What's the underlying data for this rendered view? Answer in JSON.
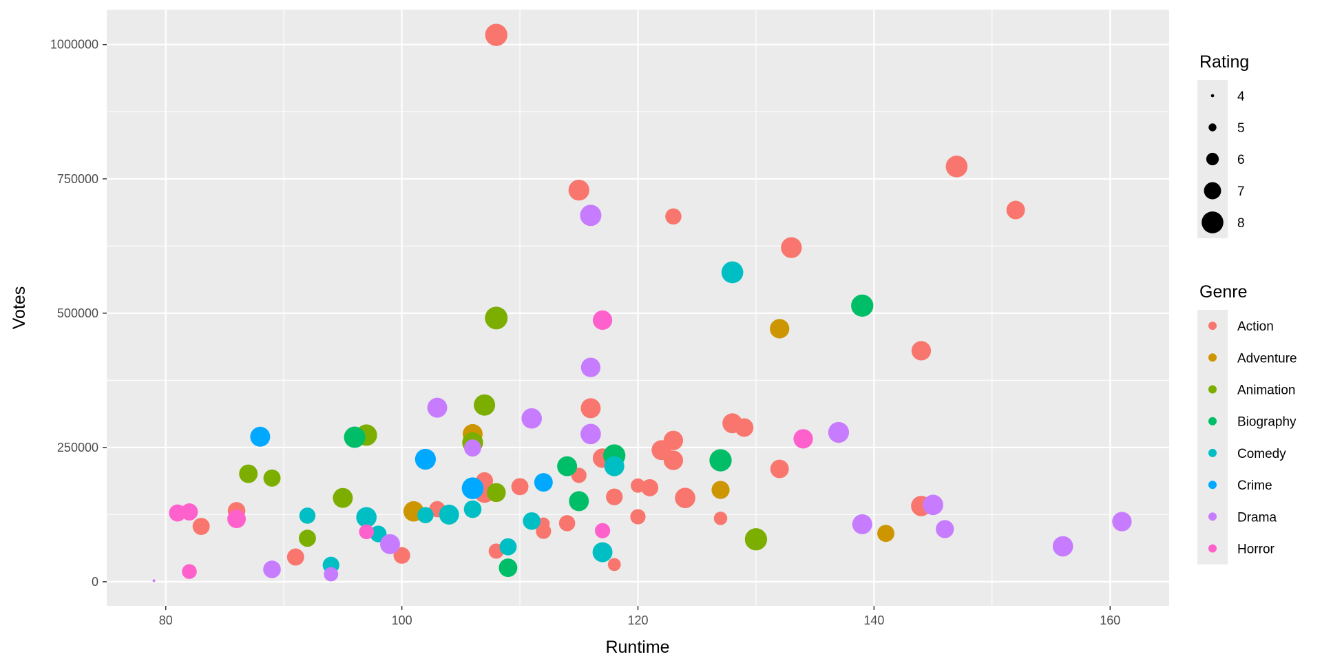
{
  "chart_data": {
    "type": "scatter",
    "title": "",
    "xlabel": "Runtime",
    "ylabel": "Votes",
    "xlim": [
      75,
      165
    ],
    "ylim": [
      -45000,
      1065000
    ],
    "xticks": [
      80,
      100,
      120,
      140,
      160
    ],
    "yticks": [
      0,
      250000,
      500000,
      750000,
      1000000
    ],
    "grid": true,
    "legend_position": "right",
    "size_legend": {
      "title": "Rating",
      "entries": [
        {
          "label": "4",
          "value": 4
        },
        {
          "label": "5",
          "value": 5
        },
        {
          "label": "6",
          "value": 6
        },
        {
          "label": "7",
          "value": 7
        },
        {
          "label": "8",
          "value": 8
        }
      ]
    },
    "color_legend": {
      "title": "Genre",
      "entries": [
        {
          "label": "Action",
          "color": "#F8766D"
        },
        {
          "label": "Adventure",
          "color": "#CD9600"
        },
        {
          "label": "Animation",
          "color": "#7CAE00"
        },
        {
          "label": "Biography",
          "color": "#00BE67"
        },
        {
          "label": "Comedy",
          "color": "#00BFC4"
        },
        {
          "label": "Crime",
          "color": "#00A9FF"
        },
        {
          "label": "Drama",
          "color": "#C77CFF"
        },
        {
          "label": "Horror",
          "color": "#FF61CC"
        }
      ]
    },
    "points": [
      {
        "x": 108,
        "y": 1018000,
        "rating": 8.1,
        "genre": "Action"
      },
      {
        "x": 147,
        "y": 773000,
        "rating": 8.0,
        "genre": "Action"
      },
      {
        "x": 115,
        "y": 729000,
        "rating": 7.8,
        "genre": "Action"
      },
      {
        "x": 152,
        "y": 692000,
        "rating": 7.3,
        "genre": "Action"
      },
      {
        "x": 123,
        "y": 680000,
        "rating": 6.8,
        "genre": "Action"
      },
      {
        "x": 133,
        "y": 622000,
        "rating": 7.8,
        "genre": "Action"
      },
      {
        "x": 144,
        "y": 430000,
        "rating": 7.5,
        "genre": "Action"
      },
      {
        "x": 116,
        "y": 323000,
        "rating": 7.6,
        "genre": "Action"
      },
      {
        "x": 128,
        "y": 295000,
        "rating": 7.6,
        "genre": "Action"
      },
      {
        "x": 129,
        "y": 287000,
        "rating": 7.3,
        "genre": "Action"
      },
      {
        "x": 123,
        "y": 263000,
        "rating": 7.5,
        "genre": "Action"
      },
      {
        "x": 122,
        "y": 245000,
        "rating": 7.6,
        "genre": "Action"
      },
      {
        "x": 117,
        "y": 230000,
        "rating": 7.5,
        "genre": "Action"
      },
      {
        "x": 123,
        "y": 226000,
        "rating": 7.5,
        "genre": "Action"
      },
      {
        "x": 132,
        "y": 210000,
        "rating": 7.3,
        "genre": "Action"
      },
      {
        "x": 115,
        "y": 198000,
        "rating": 6.6,
        "genre": "Action"
      },
      {
        "x": 107,
        "y": 188000,
        "rating": 7.0,
        "genre": "Action"
      },
      {
        "x": 120,
        "y": 179000,
        "rating": 6.4,
        "genre": "Action"
      },
      {
        "x": 110,
        "y": 177000,
        "rating": 7.0,
        "genre": "Action"
      },
      {
        "x": 121,
        "y": 175000,
        "rating": 7.0,
        "genre": "Action"
      },
      {
        "x": 107,
        "y": 166000,
        "rating": 7.7,
        "genre": "Action"
      },
      {
        "x": 118,
        "y": 158000,
        "rating": 6.9,
        "genre": "Action"
      },
      {
        "x": 124,
        "y": 156000,
        "rating": 7.7,
        "genre": "Action"
      },
      {
        "x": 144,
        "y": 141000,
        "rating": 7.7,
        "genre": "Action"
      },
      {
        "x": 103,
        "y": 135000,
        "rating": 6.8,
        "genre": "Action"
      },
      {
        "x": 86,
        "y": 132000,
        "rating": 7.1,
        "genre": "Action"
      },
      {
        "x": 120,
        "y": 121000,
        "rating": 6.6,
        "genre": "Action"
      },
      {
        "x": 127,
        "y": 118000,
        "rating": 6.2,
        "genre": "Action"
      },
      {
        "x": 114,
        "y": 109000,
        "rating": 6.8,
        "genre": "Action"
      },
      {
        "x": 112,
        "y": 108000,
        "rating": 6.0,
        "genre": "Action"
      },
      {
        "x": 83,
        "y": 103000,
        "rating": 7.0,
        "genre": "Action"
      },
      {
        "x": 112,
        "y": 94000,
        "rating": 6.6,
        "genre": "Action"
      },
      {
        "x": 108,
        "y": 57000,
        "rating": 6.6,
        "genre": "Action"
      },
      {
        "x": 100,
        "y": 49000,
        "rating": 6.9,
        "genre": "Action"
      },
      {
        "x": 91,
        "y": 46000,
        "rating": 7.0,
        "genre": "Action"
      },
      {
        "x": 118,
        "y": 32000,
        "rating": 6.1,
        "genre": "Action"
      },
      {
        "x": 132,
        "y": 471000,
        "rating": 7.5,
        "genre": "Adventure"
      },
      {
        "x": 106,
        "y": 275000,
        "rating": 7.6,
        "genre": "Adventure"
      },
      {
        "x": 127,
        "y": 171000,
        "rating": 7.2,
        "genre": "Adventure"
      },
      {
        "x": 101,
        "y": 131000,
        "rating": 7.7,
        "genre": "Adventure"
      },
      {
        "x": 141,
        "y": 90000,
        "rating": 7.0,
        "genre": "Adventure"
      },
      {
        "x": 108,
        "y": 491000,
        "rating": 8.2,
        "genre": "Animation"
      },
      {
        "x": 107,
        "y": 329000,
        "rating": 7.9,
        "genre": "Animation"
      },
      {
        "x": 97,
        "y": 273000,
        "rating": 7.9,
        "genre": "Animation"
      },
      {
        "x": 106,
        "y": 259000,
        "rating": 7.8,
        "genre": "Animation"
      },
      {
        "x": 87,
        "y": 201000,
        "rating": 7.3,
        "genre": "Animation"
      },
      {
        "x": 89,
        "y": 193000,
        "rating": 7.0,
        "genre": "Animation"
      },
      {
        "x": 108,
        "y": 166000,
        "rating": 7.4,
        "genre": "Animation"
      },
      {
        "x": 95,
        "y": 156000,
        "rating": 7.6,
        "genre": "Animation"
      },
      {
        "x": 92,
        "y": 81000,
        "rating": 7.0,
        "genre": "Animation"
      },
      {
        "x": 130,
        "y": 79000,
        "rating": 8.1,
        "genre": "Animation"
      },
      {
        "x": 139,
        "y": 514000,
        "rating": 8.1,
        "genre": "Biography"
      },
      {
        "x": 96,
        "y": 269000,
        "rating": 7.9,
        "genre": "Biography"
      },
      {
        "x": 118,
        "y": 235000,
        "rating": 8.1,
        "genre": "Biography"
      },
      {
        "x": 127,
        "y": 226000,
        "rating": 8.1,
        "genre": "Biography"
      },
      {
        "x": 114,
        "y": 215000,
        "rating": 7.6,
        "genre": "Biography"
      },
      {
        "x": 115,
        "y": 150000,
        "rating": 7.6,
        "genre": "Biography"
      },
      {
        "x": 109,
        "y": 26000,
        "rating": 7.3,
        "genre": "Biography"
      },
      {
        "x": 128,
        "y": 576000,
        "rating": 8.0,
        "genre": "Comedy"
      },
      {
        "x": 118,
        "y": 215000,
        "rating": 7.6,
        "genre": "Comedy"
      },
      {
        "x": 106,
        "y": 135000,
        "rating": 7.1,
        "genre": "Comedy"
      },
      {
        "x": 104,
        "y": 125000,
        "rating": 7.6,
        "genre": "Comedy"
      },
      {
        "x": 102,
        "y": 124000,
        "rating": 6.8,
        "genre": "Comedy"
      },
      {
        "x": 92,
        "y": 123000,
        "rating": 6.8,
        "genre": "Comedy"
      },
      {
        "x": 97,
        "y": 120000,
        "rating": 7.7,
        "genre": "Comedy"
      },
      {
        "x": 111,
        "y": 113000,
        "rating": 7.1,
        "genre": "Comedy"
      },
      {
        "x": 98,
        "y": 89000,
        "rating": 6.9,
        "genre": "Comedy"
      },
      {
        "x": 109,
        "y": 65000,
        "rating": 7.0,
        "genre": "Comedy"
      },
      {
        "x": 117,
        "y": 55000,
        "rating": 7.6,
        "genre": "Comedy"
      },
      {
        "x": 94,
        "y": 31000,
        "rating": 6.9,
        "genre": "Comedy"
      },
      {
        "x": 88,
        "y": 270000,
        "rating": 7.6,
        "genre": "Crime"
      },
      {
        "x": 102,
        "y": 228000,
        "rating": 7.8,
        "genre": "Crime"
      },
      {
        "x": 106,
        "y": 174000,
        "rating": 8.0,
        "genre": "Crime"
      },
      {
        "x": 112,
        "y": 185000,
        "rating": 7.3,
        "genre": "Crime"
      },
      {
        "x": 116,
        "y": 682000,
        "rating": 7.9,
        "genre": "Drama"
      },
      {
        "x": 116,
        "y": 399000,
        "rating": 7.5,
        "genre": "Drama"
      },
      {
        "x": 103,
        "y": 324000,
        "rating": 7.6,
        "genre": "Drama"
      },
      {
        "x": 111,
        "y": 304000,
        "rating": 7.7,
        "genre": "Drama"
      },
      {
        "x": 137,
        "y": 278000,
        "rating": 7.8,
        "genre": "Drama"
      },
      {
        "x": 116,
        "y": 275000,
        "rating": 7.7,
        "genre": "Drama"
      },
      {
        "x": 106,
        "y": 249000,
        "rating": 7.0,
        "genre": "Drama"
      },
      {
        "x": 145,
        "y": 143000,
        "rating": 7.7,
        "genre": "Drama"
      },
      {
        "x": 161,
        "y": 112000,
        "rating": 7.5,
        "genre": "Drama"
      },
      {
        "x": 139,
        "y": 107000,
        "rating": 7.6,
        "genre": "Drama"
      },
      {
        "x": 146,
        "y": 98000,
        "rating": 7.2,
        "genre": "Drama"
      },
      {
        "x": 99,
        "y": 70000,
        "rating": 7.6,
        "genre": "Drama"
      },
      {
        "x": 156,
        "y": 66000,
        "rating": 7.7,
        "genre": "Drama"
      },
      {
        "x": 89,
        "y": 23000,
        "rating": 7.1,
        "genre": "Drama"
      },
      {
        "x": 94,
        "y": 14000,
        "rating": 6.4,
        "genre": "Drama"
      },
      {
        "x": 79,
        "y": 2000,
        "rating": 3.9,
        "genre": "Drama"
      },
      {
        "x": 117,
        "y": 487000,
        "rating": 7.5,
        "genre": "Horror"
      },
      {
        "x": 134,
        "y": 266000,
        "rating": 7.5,
        "genre": "Horror"
      },
      {
        "x": 82,
        "y": 130000,
        "rating": 7.0,
        "genre": "Horror"
      },
      {
        "x": 81,
        "y": 128000,
        "rating": 7.0,
        "genre": "Horror"
      },
      {
        "x": 86,
        "y": 117000,
        "rating": 7.3,
        "genre": "Horror"
      },
      {
        "x": 117,
        "y": 95000,
        "rating": 6.6,
        "genre": "Horror"
      },
      {
        "x": 97,
        "y": 93000,
        "rating": 6.5,
        "genre": "Horror"
      },
      {
        "x": 82,
        "y": 19000,
        "rating": 6.5,
        "genre": "Horror"
      }
    ]
  }
}
